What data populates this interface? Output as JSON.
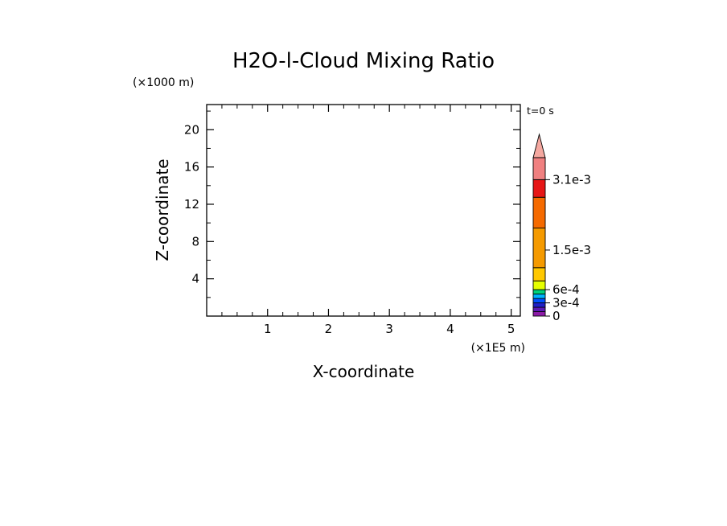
{
  "chart_data": {
    "type": "heatmap",
    "title": "H2O-l-Cloud Mixing Ratio",
    "xlabel": "X-coordinate",
    "ylabel": "Z-coordinate",
    "x_units": "(×1E5 m)",
    "y_units": "(×1000 m)",
    "time_label": "t=0 s",
    "xlim": [
      0,
      5.15
    ],
    "ylim": [
      0,
      22.7
    ],
    "x_ticks": [
      1,
      2,
      3,
      4,
      5
    ],
    "x_tick_labels": [
      "1",
      "2",
      "3",
      "4",
      "5"
    ],
    "y_ticks": [
      4,
      8,
      12,
      16,
      20
    ],
    "y_tick_labels": [
      "4",
      "8",
      "12",
      "16",
      "20"
    ],
    "x_minor_step": 0.25,
    "y_minor_step": 2,
    "field_values": [],
    "colorbar": {
      "min": 0,
      "max": 0.0036,
      "extend": "max",
      "ticks": [
        0,
        0.0003,
        0.0006,
        0.0015,
        0.0031
      ],
      "tick_labels": [
        "0",
        "3e-4",
        "6e-4",
        "1.5e-3",
        "3.1e-3"
      ],
      "bands": [
        {
          "from": 0,
          "to": 0.0001,
          "color": "#8c1aa6"
        },
        {
          "from": 0.0001,
          "to": 0.0002,
          "color": "#5a1ab4"
        },
        {
          "from": 0.0002,
          "to": 0.0003,
          "color": "#2020c8"
        },
        {
          "from": 0.0003,
          "to": 0.0004,
          "color": "#0050ff"
        },
        {
          "from": 0.0004,
          "to": 0.0005,
          "color": "#00b4ff"
        },
        {
          "from": 0.0005,
          "to": 0.0006,
          "color": "#00d27a"
        },
        {
          "from": 0.0006,
          "to": 0.0008,
          "color": "#e6ff00"
        },
        {
          "from": 0.0008,
          "to": 0.0011,
          "color": "#ffc800"
        },
        {
          "from": 0.0011,
          "to": 0.002,
          "color": "#f59a00"
        },
        {
          "from": 0.002,
          "to": 0.0027,
          "color": "#f56a00"
        },
        {
          "from": 0.0027,
          "to": 0.0031,
          "color": "#e61616"
        },
        {
          "from": 0.0031,
          "to": 0.0036,
          "color": "#f08080"
        }
      ],
      "extend_color": "#f5a8a0"
    }
  }
}
